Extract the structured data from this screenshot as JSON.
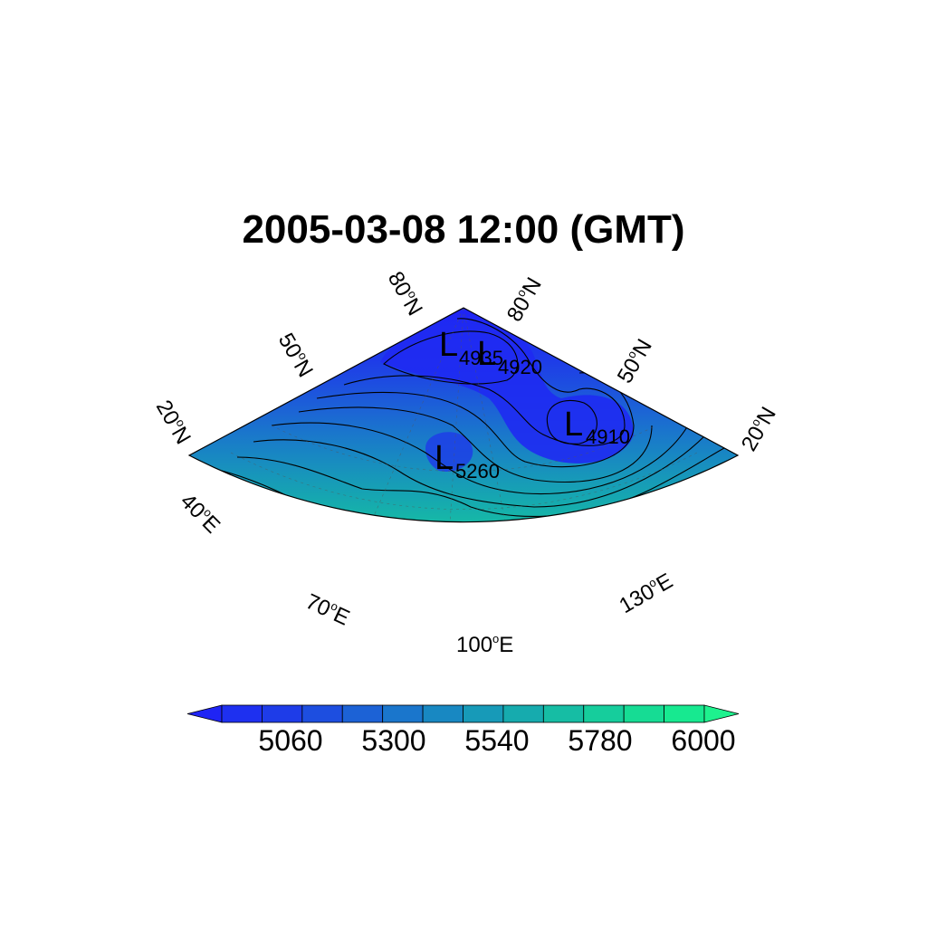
{
  "title": "2005-03-08 12:00 (GMT)",
  "map": {
    "projection": "lambert-conformal-sector",
    "lat_labels_left": [
      "80",
      "50",
      "20"
    ],
    "lat_labels_right": [
      "80",
      "50",
      "20"
    ],
    "lat_suffix": "N",
    "lon_labels": [
      "40",
      "70",
      "100",
      "130"
    ],
    "lon_suffix": "E",
    "lows": [
      {
        "mark": "L",
        "value": "4935"
      },
      {
        "mark": "L",
        "value": "4920"
      },
      {
        "mark": "L",
        "value": "4910"
      },
      {
        "mark": "L",
        "value": "5260"
      }
    ]
  },
  "colorbar": {
    "labels": [
      "5060",
      "5300",
      "5540",
      "5780",
      "6000"
    ],
    "colors": [
      "#1f24f5",
      "#1e30f0",
      "#1e3ce8",
      "#1d4ee0",
      "#1c62d6",
      "#1a76cc",
      "#1888c2",
      "#179ab8",
      "#16abae",
      "#16bda4",
      "#16cd9c",
      "#16dc94",
      "#17e990",
      "#1ef28e"
    ]
  }
}
